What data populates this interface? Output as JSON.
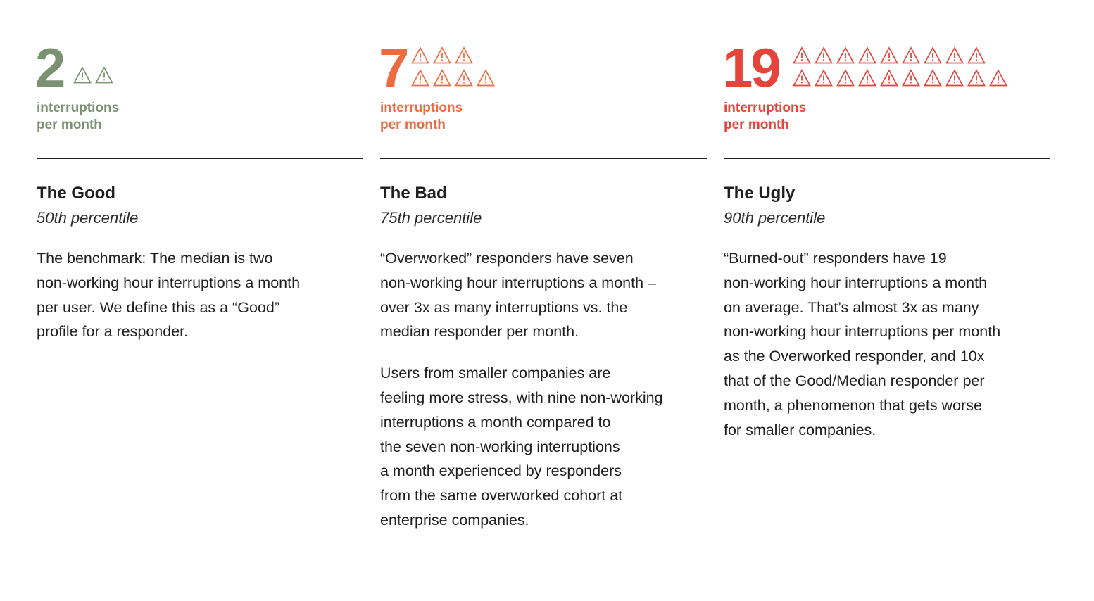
{
  "colors": {
    "good": "#7a9272",
    "bad": "#ee6b40",
    "ugly": "#e5443a",
    "text": "#1f1f1f"
  },
  "icon_name": "warning-triangle-icon",
  "columns": [
    {
      "key": "good",
      "number": "2",
      "icon_count": 2,
      "unit_line1": "interruptions",
      "unit_line2": "per month",
      "title": "The Good",
      "percentile": "50th percentile",
      "paragraphs": [
        [
          "The benchmark: The median is two",
          "non-working hour interruptions a month",
          "per user. We define this as a “Good”",
          "profile for a responder."
        ]
      ]
    },
    {
      "key": "bad",
      "number": "7",
      "icon_count": 7,
      "unit_line1": "interruptions",
      "unit_line2": "per month",
      "title": "The Bad",
      "percentile": "75th percentile",
      "paragraphs": [
        [
          "“Overworked” responders have seven",
          "non-working hour interruptions a month –",
          "over 3x as many interruptions vs. the",
          "median responder per month."
        ],
        [
          "Users from smaller companies are",
          "feeling more stress, with nine non-working",
          "interruptions a month compared to",
          "the seven non-working interruptions",
          "a month experienced by responders",
          "from the same overworked cohort at",
          "enterprise companies."
        ]
      ]
    },
    {
      "key": "ugly",
      "number": "19",
      "icon_count": 19,
      "unit_line1": "interruptions",
      "unit_line2": "per month",
      "title": "The Ugly",
      "percentile": "90th percentile",
      "paragraphs": [
        [
          "“Burned-out” responders have 19",
          "non-working hour interruptions a month",
          "on average. That’s almost 3x as many",
          "non-working hour interruptions per month",
          "as the Overworked responder, and 10x",
          "that of the Good/Median responder per",
          "month, a phenomenon that gets worse",
          "for smaller companies."
        ]
      ]
    }
  ]
}
